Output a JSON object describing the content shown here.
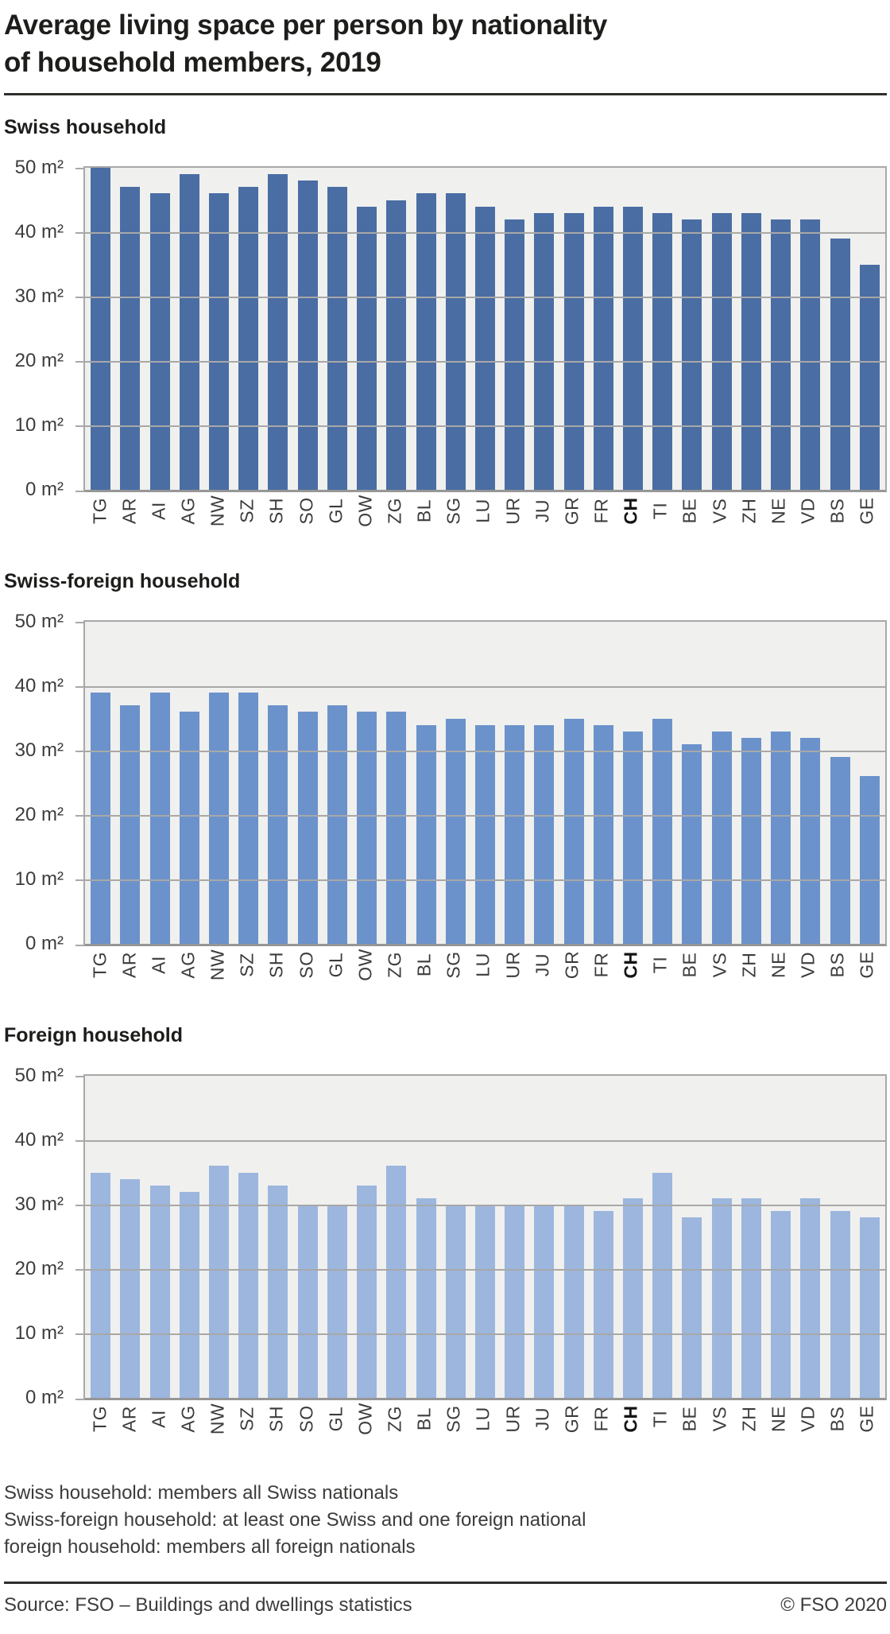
{
  "header": {
    "title_lines": [
      "Average living space per person by nationality",
      "of household members, 2019"
    ]
  },
  "chart_data": [
    {
      "type": "bar",
      "title": "Swiss household",
      "unit": "m²",
      "ylim": [
        0,
        50
      ],
      "yticks": [
        0,
        10,
        20,
        30,
        40,
        50
      ],
      "grid": true,
      "bar_color": "#4a6da4",
      "plot_bg_color": "#f0f0ee",
      "emphasized_category": "CH",
      "categories": [
        "TG",
        "AR",
        "AI",
        "AG",
        "NW",
        "SZ",
        "SH",
        "SO",
        "GL",
        "OW",
        "ZG",
        "BL",
        "SG",
        "LU",
        "UR",
        "JU",
        "GR",
        "FR",
        "CH",
        "TI",
        "BE",
        "VS",
        "ZH",
        "NE",
        "VD",
        "BS",
        "GE"
      ],
      "values": [
        50,
        47,
        46,
        49,
        46,
        47,
        49,
        48,
        47,
        44,
        45,
        46,
        46,
        44,
        42,
        43,
        43,
        44,
        44,
        43,
        42,
        43,
        43,
        42,
        42,
        39,
        35
      ]
    },
    {
      "type": "bar",
      "title": "Swiss-foreign household",
      "unit": "m²",
      "ylim": [
        0,
        50
      ],
      "yticks": [
        0,
        10,
        20,
        30,
        40,
        50
      ],
      "grid": true,
      "bar_color": "#6b92cb",
      "plot_bg_color": "#f0f0ee",
      "emphasized_category": "CH",
      "categories": [
        "TG",
        "AR",
        "AI",
        "AG",
        "NW",
        "SZ",
        "SH",
        "SO",
        "GL",
        "OW",
        "ZG",
        "BL",
        "SG",
        "LU",
        "UR",
        "JU",
        "GR",
        "FR",
        "CH",
        "TI",
        "BE",
        "VS",
        "ZH",
        "NE",
        "VD",
        "BS",
        "GE"
      ],
      "values": [
        39,
        37,
        39,
        36,
        39,
        39,
        37,
        36,
        37,
        36,
        36,
        34,
        35,
        34,
        34,
        34,
        35,
        34,
        33,
        35,
        31,
        33,
        32,
        33,
        32,
        29,
        26
      ]
    },
    {
      "type": "bar",
      "title": "Foreign household",
      "unit": "m²",
      "ylim": [
        0,
        50
      ],
      "yticks": [
        0,
        10,
        20,
        30,
        40,
        50
      ],
      "grid": true,
      "bar_color": "#9cb6de",
      "plot_bg_color": "#f0f0ee",
      "emphasized_category": "CH",
      "categories": [
        "TG",
        "AR",
        "AI",
        "AG",
        "NW",
        "SZ",
        "SH",
        "SO",
        "GL",
        "OW",
        "ZG",
        "BL",
        "SG",
        "LU",
        "UR",
        "JU",
        "GR",
        "FR",
        "CH",
        "TI",
        "BE",
        "VS",
        "ZH",
        "NE",
        "VD",
        "BS",
        "GE"
      ],
      "values": [
        35,
        34,
        33,
        32,
        36,
        35,
        33,
        30,
        30,
        33,
        36,
        31,
        30,
        30,
        30,
        30,
        30,
        29,
        31,
        35,
        28,
        31,
        31,
        29,
        31,
        29,
        28
      ]
    }
  ],
  "footnotes": {
    "lines": [
      "Swiss household: members all Swiss nationals",
      "Swiss-foreign household: at least one Swiss and one foreign national",
      "foreign household: members all foreign nationals"
    ]
  },
  "footer": {
    "source": "Source: FSO – Buildings and dwellings statistics",
    "copyright": "© FSO 2020"
  }
}
